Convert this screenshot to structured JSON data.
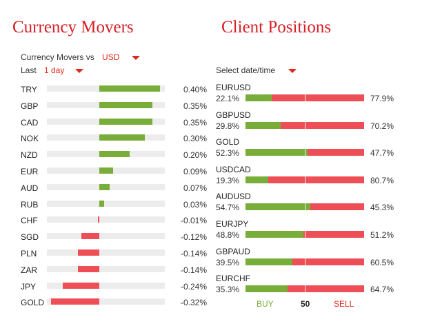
{
  "currency_movers": {
    "title": "Currency Movers",
    "vs_label": "Currency Movers vs",
    "vs_value": "USD",
    "period_label": "Last",
    "period_value": "1 day",
    "items": [
      {
        "code": "TRY",
        "pct": "0.40%",
        "value": 0.4
      },
      {
        "code": "GBP",
        "pct": "0.35%",
        "value": 0.35
      },
      {
        "code": "CAD",
        "pct": "0.35%",
        "value": 0.35
      },
      {
        "code": "NOK",
        "pct": "0.30%",
        "value": 0.3
      },
      {
        "code": "NZD",
        "pct": "0.20%",
        "value": 0.2
      },
      {
        "code": "EUR",
        "pct": "0.09%",
        "value": 0.09
      },
      {
        "code": "AUD",
        "pct": "0.07%",
        "value": 0.07
      },
      {
        "code": "RUB",
        "pct": "0.03%",
        "value": 0.03
      },
      {
        "code": "CHF",
        "pct": "-0.01%",
        "value": -0.01
      },
      {
        "code": "SGD",
        "pct": "-0.12%",
        "value": -0.12
      },
      {
        "code": "PLN",
        "pct": "-0.14%",
        "value": -0.14
      },
      {
        "code": "ZAR",
        "pct": "-0.14%",
        "value": -0.14
      },
      {
        "code": "JPY",
        "pct": "-0.24%",
        "value": -0.24
      },
      {
        "code": "GOLD",
        "pct": "-0.32%",
        "value": -0.32
      }
    ]
  },
  "client_positions": {
    "title": "Client Positions",
    "date_label": "Select date/time",
    "items": [
      {
        "pair": "EURUSD",
        "buy": "22.1%",
        "sell": "77.9%",
        "buy_value": 22.1
      },
      {
        "pair": "GBPUSD",
        "buy": "29.8%",
        "sell": "70.2%",
        "buy_value": 29.8
      },
      {
        "pair": "GOLD",
        "buy": "52.3%",
        "sell": "47.7%",
        "buy_value": 52.3
      },
      {
        "pair": "USDCAD",
        "buy": "19.3%",
        "sell": "80.7%",
        "buy_value": 19.3
      },
      {
        "pair": "AUDUSD",
        "buy": "54.7%",
        "sell": "45.3%",
        "buy_value": 54.7
      },
      {
        "pair": "EURJPY",
        "buy": "48.8%",
        "sell": "51.2%",
        "buy_value": 48.8
      },
      {
        "pair": "GBPAUD",
        "buy": "39.5%",
        "sell": "60.5%",
        "buy_value": 39.5
      },
      {
        "pair": "EURCHF",
        "buy": "35.3%",
        "sell": "64.7%",
        "buy_value": 35.3
      }
    ],
    "legend": {
      "buy": "BUY",
      "mid": "50",
      "sell": "SELL"
    }
  },
  "colors": {
    "positive": "#78ad3a",
    "negative": "#ee4f57",
    "accent": "#d61f26"
  }
}
